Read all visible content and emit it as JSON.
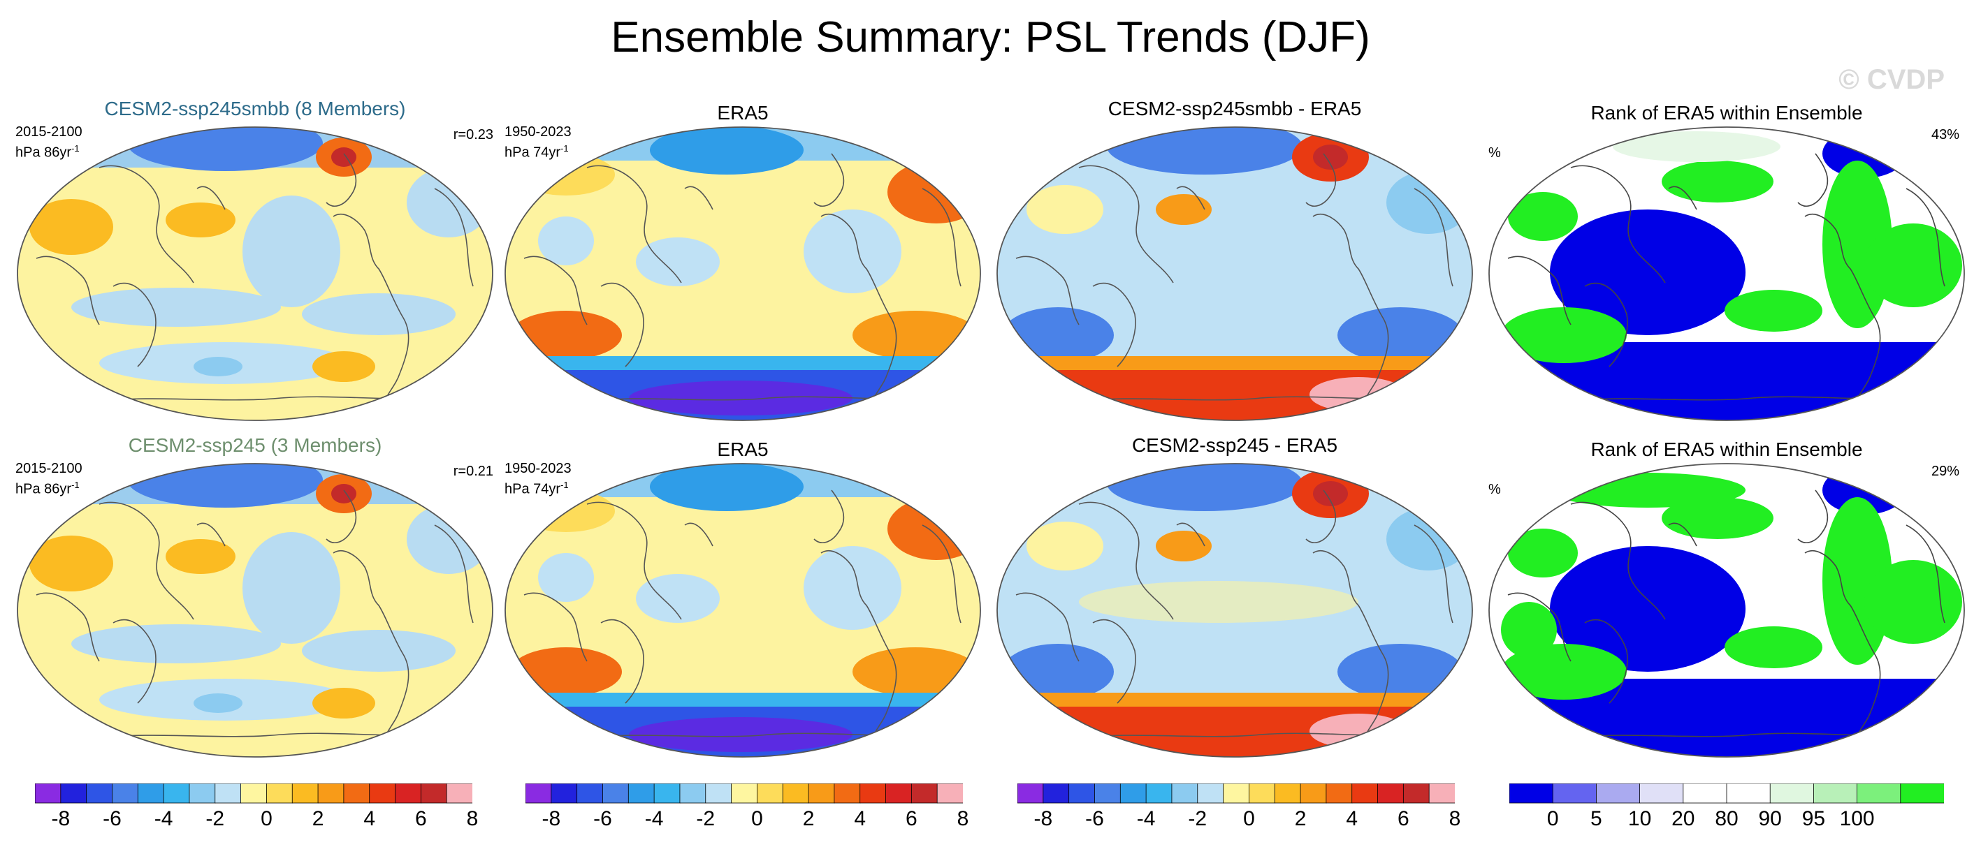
{
  "title": "Ensemble Summary: PSL Trends (DJF)",
  "watermark": "© CVDP",
  "colors": {
    "title_smbb": "#2d6b8a",
    "title_245": "#6e8f6e",
    "ocean_blue": "#b8dcf2",
    "land_yellow": "#fdf3a0",
    "rank_blue": "#0000e6",
    "rank_green": "#22ee22"
  },
  "rows": [
    {
      "model": {
        "title": "CESM2-ssp245smbb (8 Members)",
        "years": "2015-2100",
        "units": "hPa 86yr",
        "units_sup": "-1",
        "corr": "r=0.23"
      },
      "obs": {
        "title": "ERA5",
        "years": "1950-2023",
        "units": "hPa 74yr",
        "units_sup": "-1"
      },
      "diff": {
        "title": "CESM2-ssp245smbb - ERA5"
      },
      "rank": {
        "title": "Rank of ERA5 within Ensemble",
        "unit": "%",
        "pct": "43%"
      }
    },
    {
      "model": {
        "title": "CESM2-ssp245 (3 Members)",
        "years": "2015-2100",
        "units": "hPa 86yr",
        "units_sup": "-1",
        "corr": "r=0.21"
      },
      "obs": {
        "title": "ERA5",
        "years": "1950-2023",
        "units": "hPa 74yr",
        "units_sup": "-1"
      },
      "diff": {
        "title": "CESM2-ssp245 - ERA5"
      },
      "rank": {
        "title": "Rank of ERA5 within Ensemble",
        "unit": "%",
        "pct": "29%"
      }
    }
  ],
  "trend_colorbar": {
    "colors": [
      "#8a2be2",
      "#2222dd",
      "#2e55e6",
      "#4a82e8",
      "#2f9de8",
      "#39b5ee",
      "#8ccbf0",
      "#bfe1f5",
      "#fef6a0",
      "#fddc5a",
      "#fbbb22",
      "#f89b18",
      "#f26b14",
      "#e93a12",
      "#d92323",
      "#c32a2a",
      "#f7b0b8"
    ],
    "ticks": [
      "-8",
      "-6",
      "-4",
      "-2",
      "0",
      "2",
      "4",
      "6",
      "8"
    ]
  },
  "rank_colorbar": {
    "colors": [
      "#0000e6",
      "#6464f0",
      "#aaaaf0",
      "#e0e0f7",
      "#ffffff",
      "#ffffff",
      "#e0f7e0",
      "#b8f0b8",
      "#7cf07c",
      "#22ee22"
    ],
    "ticks": [
      "0",
      "5",
      "10",
      "20",
      "80",
      "90",
      "95",
      "100"
    ]
  }
}
